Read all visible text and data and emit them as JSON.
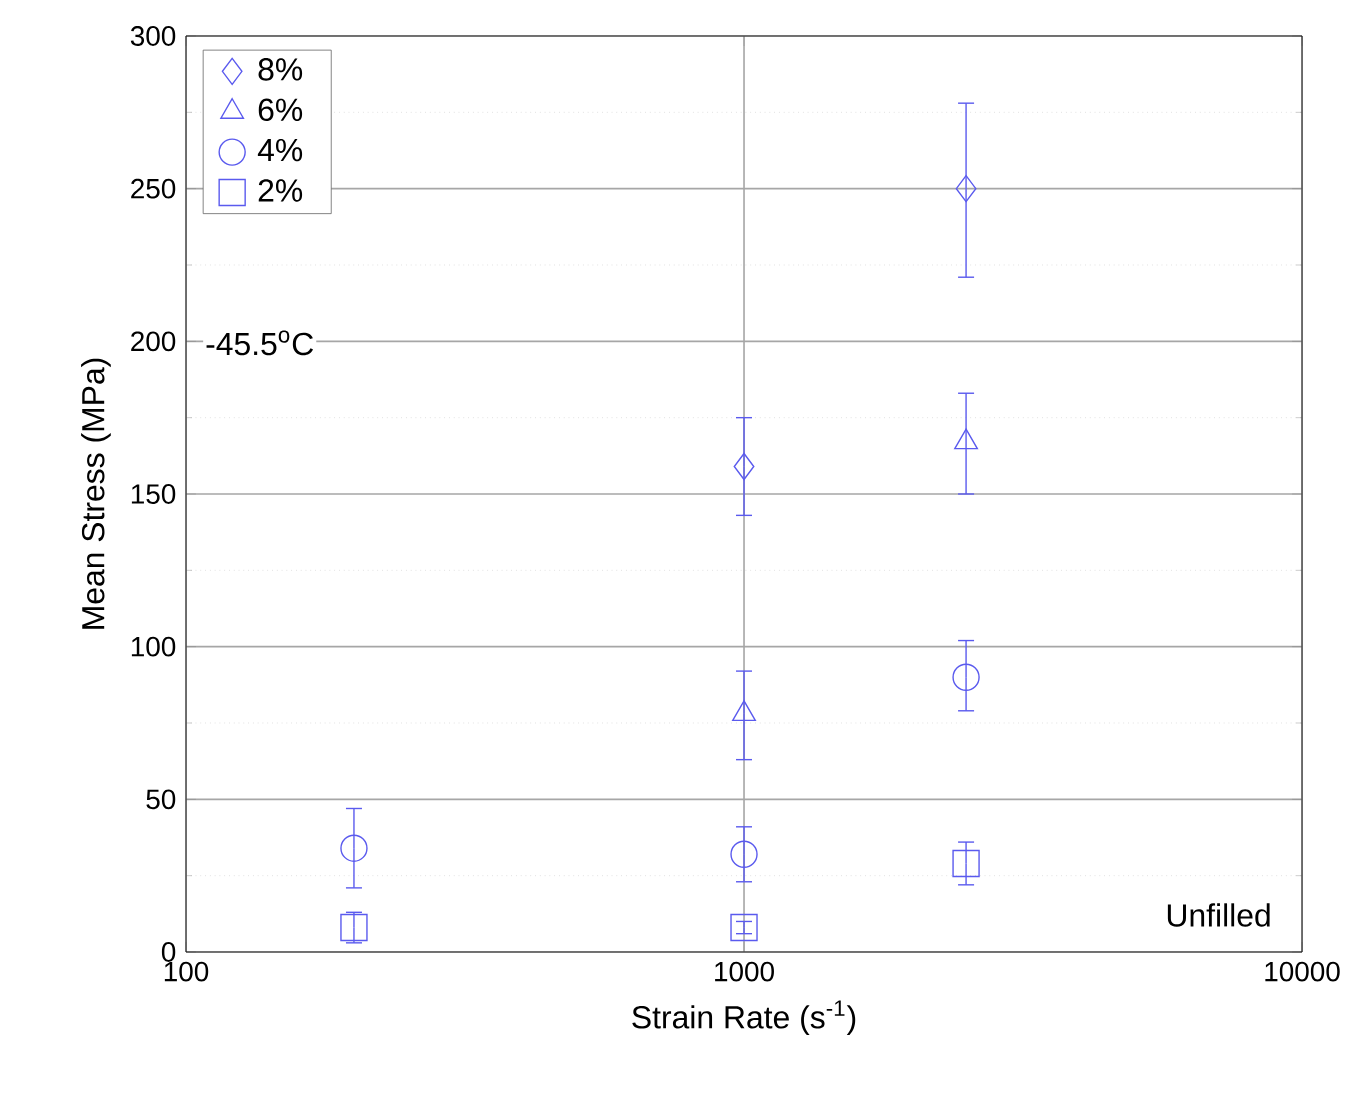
{
  "chart_data": {
    "type": "scatter",
    "xlabel": "Strain Rate (s$^{-1}$)",
    "ylabel": "Mean Stress (MPa)",
    "log": "x",
    "xlim": [
      100,
      10000
    ],
    "xticks": [
      100,
      1000,
      10000
    ],
    "ylim": [
      0,
      300
    ],
    "yticks": [
      0,
      50,
      100,
      150,
      200,
      250,
      300
    ],
    "grid": true,
    "legend": "top left",
    "annotations": [
      "-45.5$^{o}$C",
      "Unfilled"
    ],
    "series": [
      {
        "name": "8%",
        "color": "#5a5aee",
        "marker": "diamond",
        "x": [
          1000,
          2500
        ],
        "values": [
          159,
          250
        ],
        "errors": [
          [
            143,
            175
          ],
          [
            221,
            278
          ]
        ]
      },
      {
        "name": "6%",
        "color": "#5a5aee",
        "marker": "triangle",
        "x": [
          1000,
          2500
        ],
        "values": [
          78,
          167
        ],
        "errors": [
          [
            63,
            92
          ],
          [
            150,
            183
          ]
        ]
      },
      {
        "name": "4%",
        "color": "#5a5aee",
        "marker": "circle",
        "x": [
          200,
          1000,
          2500
        ],
        "values": [
          34,
          32,
          90
        ],
        "errors": [
          [
            21,
            47
          ],
          [
            23,
            41
          ],
          [
            79,
            102
          ]
        ]
      },
      {
        "name": "2%",
        "color": "#5a5aee",
        "marker": "square",
        "x": [
          200,
          1000,
          2500
        ],
        "values": [
          8,
          8,
          29
        ],
        "errors": [
          [
            3,
            13
          ],
          [
            6,
            10
          ],
          [
            22,
            36
          ]
        ]
      }
    ]
  }
}
